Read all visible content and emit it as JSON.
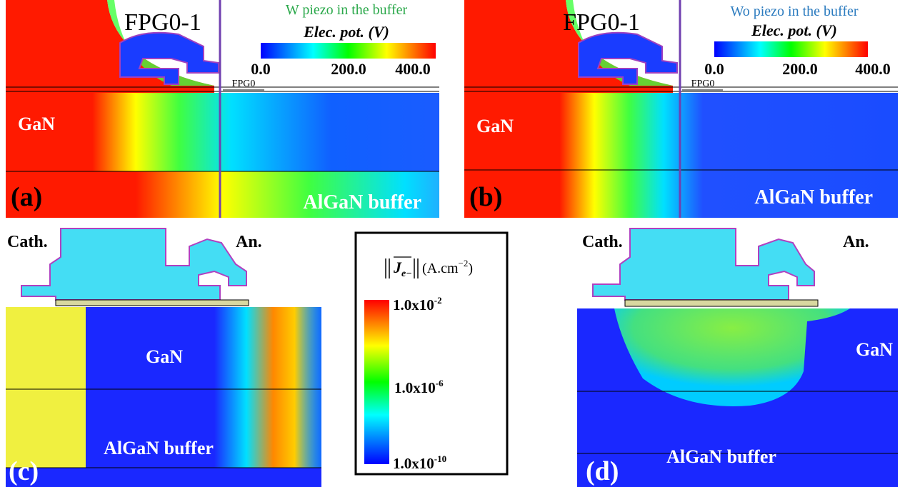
{
  "panels": [
    {
      "label": "(a)",
      "gate": "FPG0-1",
      "condition": "W piezo in the buffer",
      "colorbar": {
        "title": "Elec. pot. (V)",
        "ticks": [
          "0.0",
          "200.0",
          "400.0"
        ]
      },
      "field_plate": "FPG0",
      "top_layer": "GaN",
      "bottom_layer": "AlGaN buffer"
    },
    {
      "label": "(b)",
      "gate": "FPG0-1",
      "condition": "Wo piezo in the buffer",
      "colorbar": {
        "title": "Elec. pot. (V)",
        "ticks": [
          "0.0",
          "200.0",
          "400.0"
        ]
      },
      "field_plate": "FPG0",
      "top_layer": "GaN",
      "bottom_layer": "AlGaN buffer"
    },
    {
      "label": "(c)",
      "cathode": "Cath.",
      "anode": "An.",
      "top_layer": "GaN",
      "bottom_layer": "AlGaN buffer"
    },
    {
      "label": "(d)",
      "cathode": "Cath.",
      "anode": "An.",
      "top_layer": "GaN",
      "bottom_layer": "AlGaN buffer"
    }
  ],
  "legend": {
    "symbol": "J",
    "subscript": "e−",
    "units": "(A.cm",
    "units_exponent": "−2",
    "units_close": ")",
    "ticks": [
      {
        "mantissa": "1.0x10",
        "exponent": "-2"
      },
      {
        "mantissa": "1.0x10",
        "exponent": "-6"
      },
      {
        "mantissa": "1.0x10",
        "exponent": "-10"
      }
    ]
  }
}
